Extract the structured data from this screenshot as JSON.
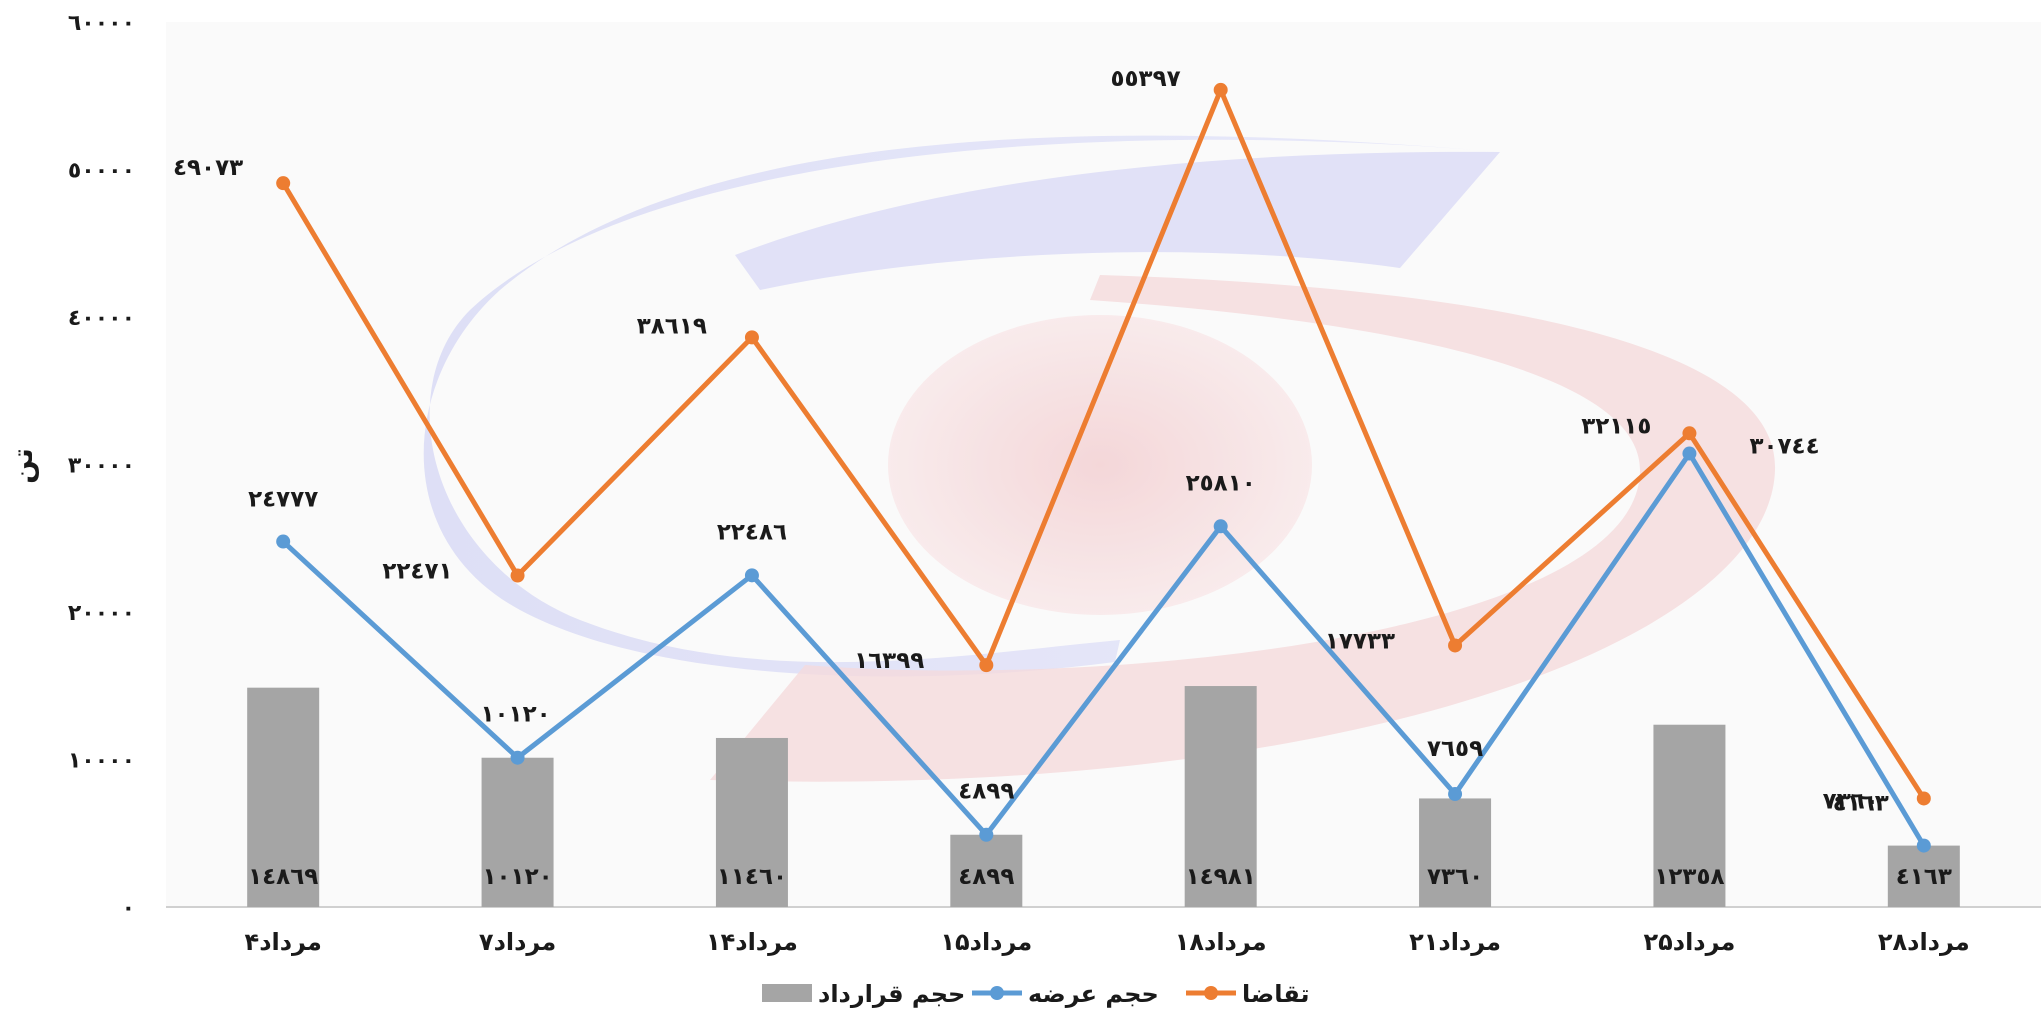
{
  "chart_data": {
    "type": "bar",
    "title": "",
    "xlabel": "",
    "ylabel": "تن",
    "ylim": [
      0,
      60000
    ],
    "yticks": [
      {
        "value": 0,
        "label": "٠"
      },
      {
        "value": 10000,
        "label": "١٠٠٠٠"
      },
      {
        "value": 20000,
        "label": "٢٠٠٠٠"
      },
      {
        "value": 30000,
        "label": "٣٠٠٠٠"
      },
      {
        "value": 40000,
        "label": "٤٠٠٠٠"
      },
      {
        "value": 50000,
        "label": "٥٠٠٠٠"
      },
      {
        "value": 60000,
        "label": "٦٠٠٠٠"
      }
    ],
    "categories": [
      "۴مرداد",
      "۷مرداد",
      "۱۴مرداد",
      "۱۵مرداد",
      "۱۸مرداد",
      "۲۱مرداد",
      "۲۵مرداد",
      "۲۸مرداد"
    ],
    "legend_position": "bottom",
    "grid": false,
    "series": [
      {
        "name": "تقاضا",
        "kind": "line",
        "color": "#ED7D31",
        "values": [
          49073,
          22471,
          38619,
          16399,
          55397,
          17733,
          32115,
          7360
        ],
        "labels": [
          "٤٩٠٧٣",
          "٢٢٤٧١",
          "٣٨٦١٩",
          "١٦٣٩٩",
          "٥٥٣٩٧",
          "١٧٧٣٣",
          "٣٢١١٥",
          "٧٣٦٠"
        ]
      },
      {
        "name": "حجم عرضه",
        "kind": "line",
        "color": "#5B9BD5",
        "values": [
          24777,
          10120,
          22486,
          4899,
          25810,
          7659,
          30744,
          4163
        ],
        "labels": [
          "٢٤٧٧٧",
          "١٠١٢٠",
          "٢٢٤٨٦",
          "٤٨٩٩",
          "٢٥٨١٠",
          "٧٦٥٩",
          "٣٠٧٤٤",
          "٤١٦٣"
        ]
      },
      {
        "name": "حجم قرارداد",
        "kind": "bar",
        "color": "#A5A5A5",
        "values": [
          14869,
          10120,
          11460,
          4899,
          14981,
          7360,
          12358,
          4163
        ],
        "labels": [
          "١٤٨٦٩",
          "١٠١٢٠",
          "١١٤٦٠",
          "٤٨٩٩",
          "١٤٩٨١",
          "٧٣٦٠",
          "١٢٣٥٨",
          "٤١٦٣"
        ]
      }
    ]
  }
}
